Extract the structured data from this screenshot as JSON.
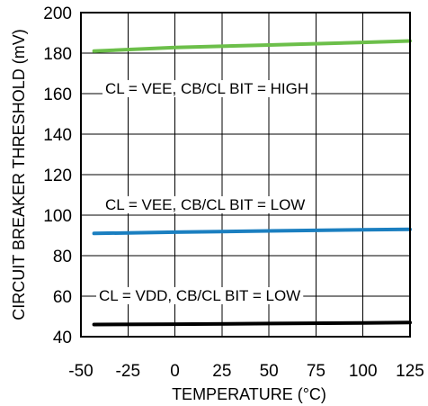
{
  "chart_data": {
    "type": "line",
    "title": "",
    "xlabel": "TEMPERATURE (°C)",
    "ylabel": "CIRCUIT BREAKER THRESHOLD (mV)",
    "xlim": [
      -50,
      125
    ],
    "ylim": [
      40,
      200
    ],
    "xticks": [
      -50,
      -25,
      0,
      25,
      50,
      75,
      100,
      125
    ],
    "yticks": [
      40,
      60,
      80,
      100,
      120,
      140,
      160,
      180,
      200
    ],
    "grid": true,
    "series": [
      {
        "name": "CL = VEE, CB/CL BIT = HIGH",
        "color": "#6cbf4a",
        "x": [
          -43,
          0,
          50,
          100,
          125
        ],
        "y": [
          181,
          182.8,
          184,
          185.3,
          186
        ]
      },
      {
        "name": "CL = VEE, CB/CL BIT = LOW",
        "color": "#1b7fc0",
        "x": [
          -43,
          0,
          50,
          100,
          125
        ],
        "y": [
          91,
          91.6,
          92.2,
          92.8,
          93
        ]
      },
      {
        "name": "CL = VDD, CB/CL BIT = LOW",
        "color": "#000000",
        "x": [
          -43,
          0,
          50,
          100,
          125
        ],
        "y": [
          46,
          46.2,
          46.5,
          46.8,
          47
        ]
      }
    ]
  }
}
